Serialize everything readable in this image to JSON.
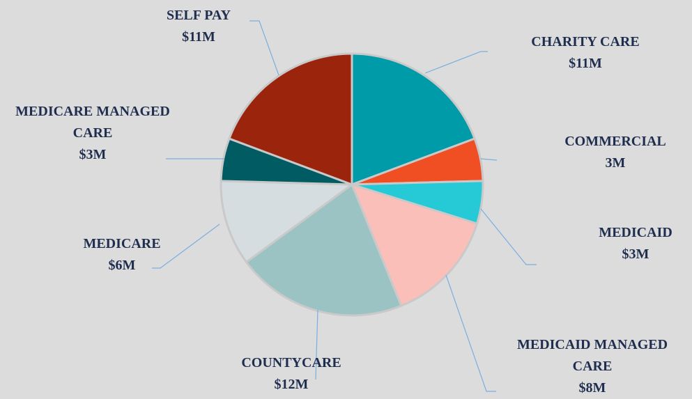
{
  "chart_data": {
    "type": "pie",
    "categories": [
      "CHARITY CARE",
      "COMMERCIAL",
      "MEDICAID",
      "MEDICAID MANAGED CARE",
      "COUNTYCARE",
      "MEDICARE",
      "MEDICARE MANAGED CARE",
      "SELF PAY"
    ],
    "values": [
      11,
      3,
      3,
      8,
      12,
      6,
      3,
      11
    ],
    "value_labels": [
      "$11M",
      "3M",
      "$3M",
      "$8M",
      "$12M",
      "$6M",
      "$3M",
      "$11M"
    ],
    "colors": [
      "#009ba8",
      "#f04e23",
      "#26c9d6",
      "#fbbfba",
      "#9cc3c4",
      "#d5dde0",
      "#005b62",
      "#9b240c"
    ]
  }
}
